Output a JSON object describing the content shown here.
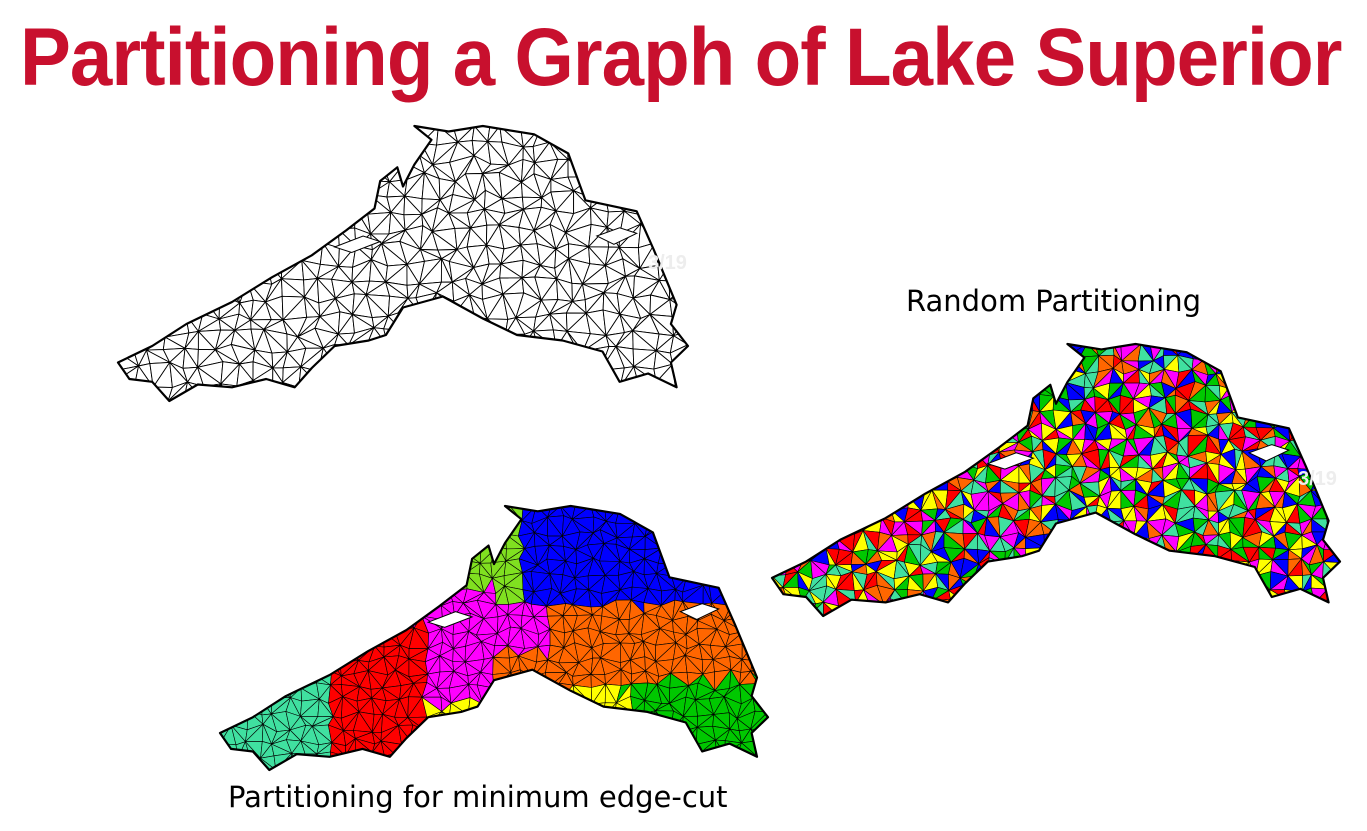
{
  "slide": {
    "title": "Partitioning a Graph of Lake Superior",
    "captions": {
      "random": "Random Partitioning",
      "min_edge_cut": "Partitioning for minimum edge-cut"
    },
    "watermarks": [
      "3/19",
      "3/19"
    ]
  },
  "colors": {
    "title": "#c8102e",
    "mesh_edge": "#000000",
    "background": "#ffffff",
    "partitions": [
      "#00c800",
      "#0000ff",
      "#ff00ff",
      "#ff0000",
      "#ffff00",
      "#ff6600",
      "#40e0a0",
      "#80e020",
      "#40ffc0",
      "#ff8000"
    ]
  },
  "figures": [
    {
      "name": "unpartitioned-mesh",
      "fill": "none"
    },
    {
      "name": "random-partitioning-mesh",
      "fill": "random"
    },
    {
      "name": "min-edge-cut-mesh",
      "fill": "regions"
    }
  ]
}
